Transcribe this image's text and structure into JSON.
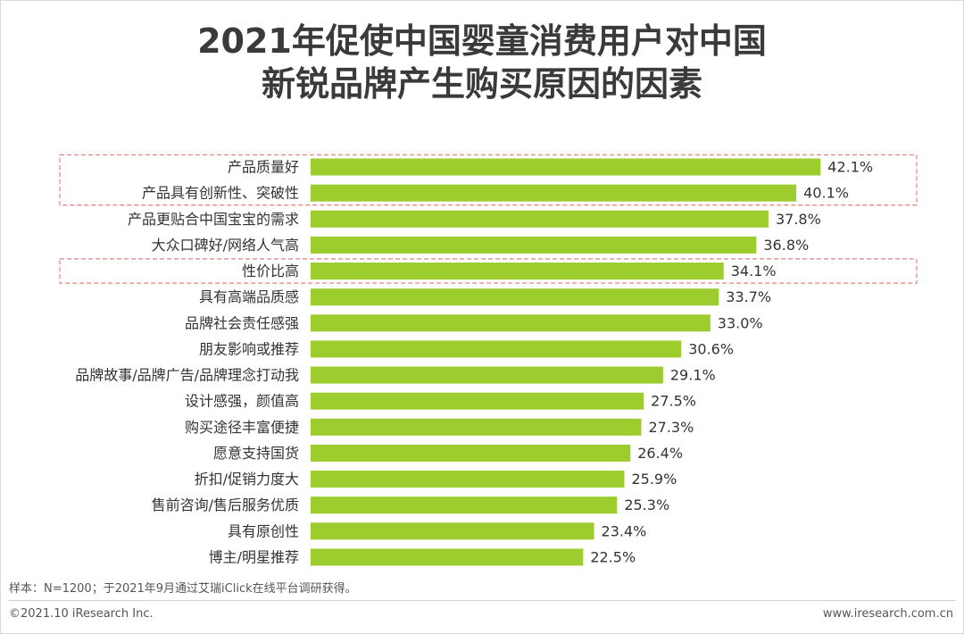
{
  "title": {
    "line1": "2021年促使中国婴童消费用户对中国",
    "line2": "新锐品牌产生购买原因的因素"
  },
  "colors": {
    "bar": "#9ccc2e",
    "highlight_border": "#e58a8a",
    "text": "#333333"
  },
  "chart_data": {
    "type": "bar",
    "orientation": "horizontal",
    "title": "2021年促使中国婴童消费用户对中国新锐品牌产生购买原因的因素",
    "categories": [
      "产品质量好",
      "产品具有创新性、突破性",
      "产品更贴合中国宝宝的需求",
      "大众口碑好/网络人气高",
      "性价比高",
      "具有高端品质感",
      "品牌社会责任感强",
      "朋友影响或推荐",
      "品牌故事/品牌广告/品牌理念打动我",
      "设计感强，颜值高",
      "购买途径丰富便捷",
      "愿意支持国货",
      "折扣/促销力度大",
      "售前咨询/售后服务优质",
      "具有原创性",
      "博主/明星推荐"
    ],
    "values": [
      42.1,
      40.1,
      37.8,
      36.8,
      34.1,
      33.7,
      33.0,
      30.6,
      29.1,
      27.5,
      27.3,
      26.4,
      25.9,
      25.3,
      23.4,
      22.5
    ],
    "value_labels": [
      "42.1%",
      "40.1%",
      "37.8%",
      "36.8%",
      "34.1%",
      "33.7%",
      "33.0%",
      "30.6%",
      "29.1%",
      "27.5%",
      "27.3%",
      "26.4%",
      "25.9%",
      "25.3%",
      "23.4%",
      "22.5%"
    ],
    "unit": "%",
    "xlim": [
      0,
      45
    ],
    "highlighted_groups": [
      [
        0,
        1
      ],
      [
        4
      ]
    ],
    "xlabel": "",
    "ylabel": ""
  },
  "footer": {
    "note": "样本：N=1200；于2021年9月通过艾瑞iClick在线平台调研获得。",
    "copyright": "©2021.10 iResearch Inc.",
    "site": "www.iresearch.com.cn"
  }
}
